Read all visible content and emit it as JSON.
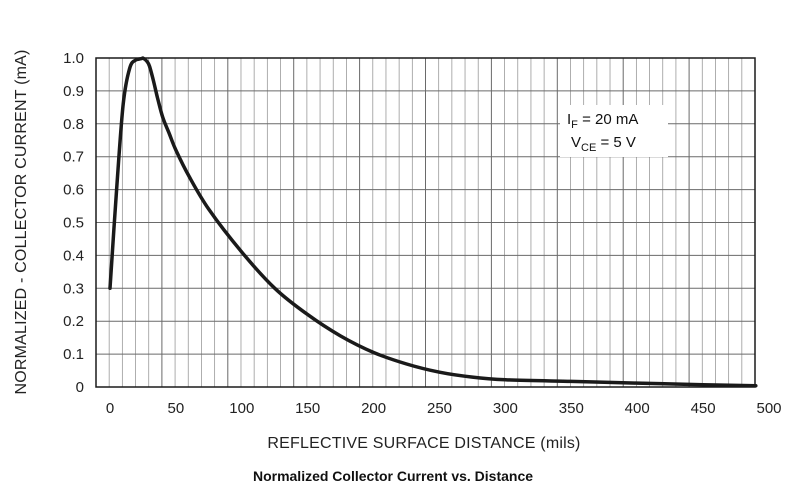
{
  "caption": "Normalized Collector Current vs. Distance",
  "chart_data": {
    "type": "line",
    "title": "",
    "xlabel": "REFLECTIVE SURFACE DISTANCE (mils)",
    "ylabel": "NORMALIZED - COLLECTOR CURRENT (mA)",
    "xlim": [
      0,
      500
    ],
    "ylim": [
      0,
      1.0
    ],
    "xticks": [
      "0",
      "50",
      "100",
      "150",
      "200",
      "250",
      "300",
      "350",
      "400",
      "450",
      "500"
    ],
    "yticks": [
      "0",
      "0.1",
      "0.2",
      "0.3",
      "0.4",
      "0.5",
      "0.6",
      "0.7",
      "0.8",
      "0.9",
      "1.0"
    ],
    "grid": true,
    "series": [
      {
        "x": [
          0,
          5,
          10,
          15,
          20,
          25,
          28,
          30,
          33,
          36,
          40,
          45,
          50,
          60,
          75,
          100,
          125,
          150,
          175,
          200,
          225,
          250,
          275,
          300,
          350,
          400,
          450,
          490
        ],
        "y": [
          0.3,
          0.6,
          0.86,
          0.97,
          0.995,
          1.0,
          0.99,
          0.975,
          0.93,
          0.88,
          0.82,
          0.77,
          0.72,
          0.64,
          0.54,
          0.41,
          0.3,
          0.22,
          0.155,
          0.105,
          0.07,
          0.045,
          0.03,
          0.022,
          0.017,
          0.012,
          0.007,
          0.004
        ]
      }
    ],
    "annotation": {
      "line1_main": "I",
      "line1_sub": "F",
      "line1_rest": " = 20 mA",
      "line2_main": "V",
      "line2_sub": "CE",
      "line2_rest": " = 5 V"
    }
  }
}
